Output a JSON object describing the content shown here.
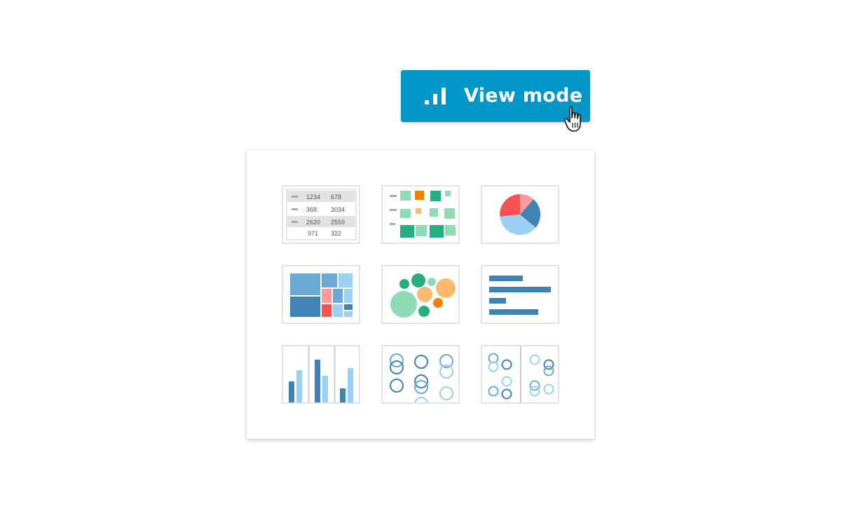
{
  "toolbar": {
    "view_mode_label": "View mode",
    "view_mode_icon": "bar-chart-signal-icon",
    "accent_color": "#0096c7"
  },
  "cursor": {
    "icon": "hand-pointer-icon"
  },
  "visualization_picker": {
    "options": [
      {
        "type": "table",
        "icon": "table-icon"
      },
      {
        "type": "heatmap",
        "icon": "heatmap-icon"
      },
      {
        "type": "pie",
        "icon": "pie-chart-icon"
      },
      {
        "type": "treemap",
        "icon": "treemap-icon"
      },
      {
        "type": "bubble",
        "icon": "bubble-chart-icon"
      },
      {
        "type": "horizontal-bar",
        "icon": "horizontal-bar-chart-icon"
      },
      {
        "type": "grouped-bar",
        "icon": "grouped-bar-chart-icon"
      },
      {
        "type": "scatter",
        "icon": "scatter-plot-icon"
      },
      {
        "type": "split-scatter",
        "icon": "split-scatter-plot-icon"
      }
    ],
    "table_preview": {
      "rows": [
        [
          "1234",
          "678"
        ],
        [
          "368",
          "3034"
        ],
        [
          "2620",
          "2559"
        ],
        [
          "971",
          "322"
        ]
      ]
    }
  }
}
